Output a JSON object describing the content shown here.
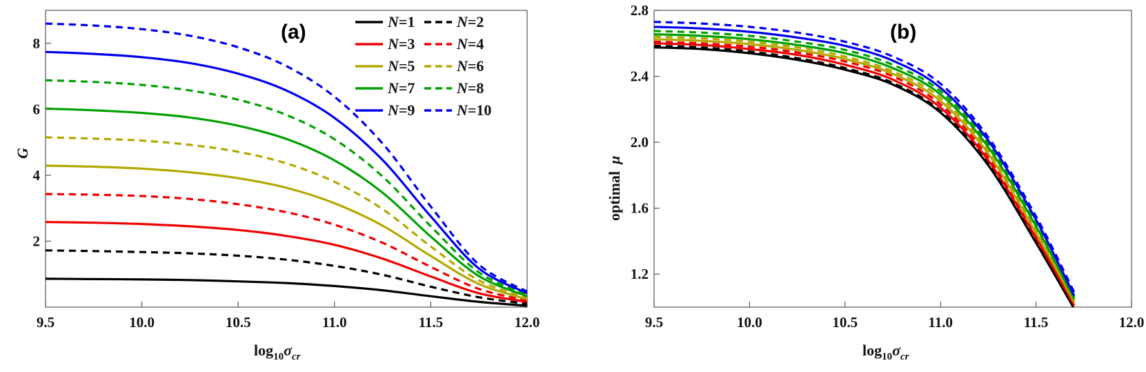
{
  "chart_data": [
    {
      "type": "line",
      "panel_label": "(a)",
      "xlabel": {
        "prefix": "log",
        "sub": "10",
        "var": "σ",
        "var_sub": "cr"
      },
      "ylabel": "G",
      "xlim": [
        9.5,
        12.0
      ],
      "ylim": [
        0,
        9
      ],
      "xticks": [
        "9.5",
        "10.0",
        "10.5",
        "11.0",
        "11.5",
        "12.0"
      ],
      "yticks": [
        "2",
        "4",
        "6",
        "8"
      ],
      "legend_position": "top-right",
      "x": [
        9.5,
        9.75,
        10.0,
        10.25,
        10.5,
        10.75,
        11.0,
        11.25,
        11.5,
        11.75,
        12.0
      ],
      "series": [
        {
          "name": "N=1",
          "N": "1",
          "style": "solid",
          "color": "#000000",
          "values": [
            0.86,
            0.85,
            0.84,
            0.82,
            0.78,
            0.73,
            0.64,
            0.51,
            0.33,
            0.16,
            0.04
          ]
        },
        {
          "name": "N=2",
          "N": "2",
          "style": "dashed",
          "color": "#000000",
          "values": [
            1.72,
            1.7,
            1.67,
            1.63,
            1.56,
            1.44,
            1.25,
            0.98,
            0.62,
            0.3,
            0.1
          ]
        },
        {
          "name": "N=3",
          "N": "3",
          "style": "solid",
          "color": "#ee0000",
          "values": [
            2.58,
            2.56,
            2.52,
            2.45,
            2.34,
            2.16,
            1.89,
            1.47,
            0.93,
            0.42,
            0.16
          ]
        },
        {
          "name": "N=4",
          "N": "4",
          "style": "dashed",
          "color": "#ee0000",
          "values": [
            3.43,
            3.41,
            3.37,
            3.28,
            3.12,
            2.88,
            2.5,
            1.95,
            1.22,
            0.55,
            0.2
          ]
        },
        {
          "name": "N=5",
          "N": "5",
          "style": "solid",
          "color": "#b3a800",
          "values": [
            4.29,
            4.26,
            4.2,
            4.09,
            3.91,
            3.62,
            3.15,
            2.47,
            1.55,
            0.7,
            0.24
          ]
        },
        {
          "name": "N=6",
          "N": "6",
          "style": "dashed",
          "color": "#b3a800",
          "values": [
            5.15,
            5.11,
            5.05,
            4.92,
            4.71,
            4.36,
            3.8,
            2.97,
            1.84,
            0.81,
            0.28
          ]
        },
        {
          "name": "N=7",
          "N": "7",
          "style": "solid",
          "color": "#00a000",
          "values": [
            6.02,
            5.97,
            5.89,
            5.75,
            5.5,
            5.1,
            4.45,
            3.47,
            2.14,
            0.94,
            0.33
          ]
        },
        {
          "name": "N=8",
          "N": "8",
          "style": "dashed",
          "color": "#00a000",
          "values": [
            6.88,
            6.83,
            6.74,
            6.57,
            6.29,
            5.83,
            5.09,
            3.96,
            2.45,
            1.05,
            0.37
          ]
        },
        {
          "name": "N=9",
          "N": "9",
          "style": "solid",
          "color": "#0000ee",
          "values": [
            7.74,
            7.68,
            7.58,
            7.4,
            7.08,
            6.57,
            5.74,
            4.46,
            2.75,
            1.17,
            0.42
          ]
        },
        {
          "name": "N=10",
          "N": "10",
          "style": "dashed",
          "color": "#0000ee",
          "values": [
            8.6,
            8.54,
            8.43,
            8.23,
            7.88,
            7.31,
            6.38,
            4.96,
            3.05,
            1.29,
            0.47
          ]
        }
      ]
    },
    {
      "type": "line",
      "panel_label": "(b)",
      "xlabel": {
        "prefix": "log",
        "sub": "10",
        "var": "σ",
        "var_sub": "cr"
      },
      "ylabel": {
        "text": "optimal",
        "symbol": "μ"
      },
      "xlim": [
        9.5,
        12.0
      ],
      "ylim": [
        1.0,
        2.8
      ],
      "xticks": [
        "9.5",
        "10.0",
        "10.5",
        "11.0",
        "11.5",
        "12.0"
      ],
      "yticks": [
        "1.2",
        "1.6",
        "2.0",
        "2.4",
        "2.8"
      ],
      "x": [
        9.5,
        9.75,
        10.0,
        10.25,
        10.5,
        10.75,
        11.0,
        11.25,
        11.5,
        11.7
      ],
      "series": [
        {
          "name": "N=1",
          "style": "solid",
          "color": "#000000",
          "values": [
            2.575,
            2.565,
            2.54,
            2.5,
            2.44,
            2.35,
            2.18,
            1.86,
            1.39,
            0.99
          ]
        },
        {
          "name": "N=2",
          "style": "dashed",
          "color": "#000000",
          "values": [
            2.585,
            2.575,
            2.55,
            2.51,
            2.45,
            2.36,
            2.19,
            1.87,
            1.4,
            1.0
          ]
        },
        {
          "name": "N=3",
          "style": "solid",
          "color": "#ee0000",
          "values": [
            2.6,
            2.59,
            2.565,
            2.53,
            2.47,
            2.38,
            2.21,
            1.89,
            1.42,
            1.01
          ]
        },
        {
          "name": "N=4",
          "style": "dashed",
          "color": "#ee0000",
          "values": [
            2.61,
            2.6,
            2.58,
            2.545,
            2.49,
            2.4,
            2.23,
            1.91,
            1.43,
            1.02
          ]
        },
        {
          "name": "N=5",
          "style": "solid",
          "color": "#b3a800",
          "values": [
            2.625,
            2.615,
            2.595,
            2.56,
            2.505,
            2.415,
            2.25,
            1.93,
            1.45,
            1.03
          ]
        },
        {
          "name": "N=6",
          "style": "dashed",
          "color": "#b3a800",
          "values": [
            2.64,
            2.63,
            2.61,
            2.575,
            2.52,
            2.43,
            2.27,
            1.95,
            1.47,
            1.04
          ]
        },
        {
          "name": "N=7",
          "style": "solid",
          "color": "#00a000",
          "values": [
            2.655,
            2.645,
            2.625,
            2.59,
            2.54,
            2.45,
            2.29,
            1.97,
            1.49,
            1.05
          ]
        },
        {
          "name": "N=8",
          "style": "dashed",
          "color": "#00a000",
          "values": [
            2.675,
            2.665,
            2.645,
            2.61,
            2.56,
            2.47,
            2.31,
            1.99,
            1.51,
            1.06
          ]
        },
        {
          "name": "N=9",
          "style": "solid",
          "color": "#0000ee",
          "values": [
            2.7,
            2.69,
            2.67,
            2.635,
            2.585,
            2.495,
            2.33,
            2.01,
            1.53,
            1.07
          ]
        },
        {
          "name": "N=10",
          "style": "dashed",
          "color": "#0000ee",
          "values": [
            2.73,
            2.72,
            2.7,
            2.665,
            2.61,
            2.52,
            2.355,
            2.03,
            1.55,
            1.09
          ]
        }
      ]
    }
  ]
}
